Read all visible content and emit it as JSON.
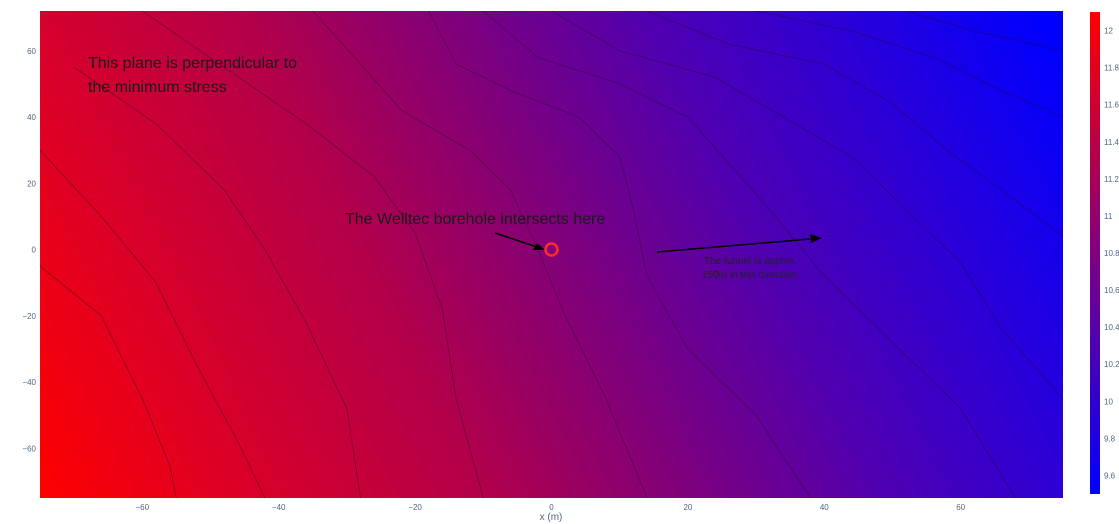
{
  "chart_data": {
    "type": "heatmap",
    "subtype": "filled-contour",
    "title": "",
    "xlabel": "x (m)",
    "ylabel": "",
    "xlim": [
      -75,
      75
    ],
    "ylim": [
      -75,
      72
    ],
    "x_ticks": [
      -60,
      -40,
      -20,
      0,
      20,
      40,
      60
    ],
    "y_ticks": [
      60,
      40,
      20,
      0,
      -20,
      -40,
      -60
    ],
    "x_tick_labels": [
      "−60",
      "−40",
      "−20",
      "0",
      "20",
      "40",
      "60"
    ],
    "y_tick_labels": [
      "60",
      "40",
      "20",
      "0",
      "−20",
      "−40",
      "−60"
    ],
    "colorscale": [
      "#ff0000",
      "#0000ff"
    ],
    "zlim": [
      9.5,
      12.1
    ],
    "colorbar_ticks": [
      12,
      11.8,
      11.6,
      11.4,
      11.2,
      11,
      10.8,
      10.6,
      10.4,
      10.2,
      10,
      9.8,
      9.6
    ],
    "colorbar_labels": [
      "12",
      "11.8",
      "11.6",
      "11.4",
      "11.2",
      "11",
      "10.8",
      "10.6",
      "10.4",
      "10.2",
      "10",
      "9.8",
      "9.6"
    ],
    "contour_levels": [
      9.7,
      9.9,
      10.1,
      10.3,
      10.5,
      10.7,
      10.9,
      11.1,
      11.3,
      11.5,
      11.7,
      11.9
    ],
    "contour_lines": [
      {
        "level": 11.7,
        "points": [
          [
            -75,
            -5
          ],
          [
            -66,
            -20
          ],
          [
            -60,
            -45
          ],
          [
            -56,
            -65
          ],
          [
            -55,
            -75
          ]
        ]
      },
      {
        "level": 11.5,
        "points": [
          [
            -75,
            30
          ],
          [
            -66,
            10
          ],
          [
            -58,
            -10
          ],
          [
            -52,
            -35
          ],
          [
            -46,
            -58
          ],
          [
            -42,
            -75
          ]
        ]
      },
      {
        "level": 11.3,
        "points": [
          [
            -70,
            55
          ],
          [
            -58,
            38
          ],
          [
            -48,
            18
          ],
          [
            -42,
            0
          ],
          [
            -36,
            -22
          ],
          [
            -30,
            -48
          ],
          [
            -28,
            -75
          ]
        ]
      },
      {
        "level": 11.1,
        "points": [
          [
            -60,
            72
          ],
          [
            -48,
            55
          ],
          [
            -36,
            38
          ],
          [
            -26,
            22
          ],
          [
            -20,
            5
          ],
          [
            -16,
            -18
          ],
          [
            -14,
            -45
          ],
          [
            -10,
            -75
          ]
        ]
      },
      {
        "level": 10.9,
        "points": [
          [
            -35,
            72
          ],
          [
            -28,
            56
          ],
          [
            -22,
            42
          ],
          [
            -12,
            30
          ],
          [
            -6,
            18
          ],
          [
            -2,
            0
          ],
          [
            2,
            -20
          ],
          [
            8,
            -45
          ],
          [
            14,
            -75
          ]
        ]
      },
      {
        "level": 10.7,
        "points": [
          [
            -18,
            72
          ],
          [
            -14,
            56
          ],
          [
            -6,
            48
          ],
          [
            4,
            40
          ],
          [
            10,
            28
          ],
          [
            12,
            12
          ],
          [
            14,
            -8
          ],
          [
            20,
            -30
          ],
          [
            30,
            -50
          ],
          [
            38,
            -75
          ]
        ]
      },
      {
        "level": 10.5,
        "points": [
          [
            -10,
            72
          ],
          [
            -2,
            58
          ],
          [
            10,
            50
          ],
          [
            20,
            40
          ],
          [
            26,
            26
          ],
          [
            32,
            12
          ],
          [
            40,
            -8
          ],
          [
            50,
            -28
          ],
          [
            60,
            -48
          ],
          [
            68,
            -75
          ]
        ]
      },
      {
        "level": 10.3,
        "points": [
          [
            0,
            72
          ],
          [
            10,
            60
          ],
          [
            24,
            52
          ],
          [
            34,
            40
          ],
          [
            44,
            28
          ],
          [
            52,
            12
          ],
          [
            60,
            -4
          ],
          [
            66,
            -24
          ],
          [
            75,
            -45
          ]
        ]
      },
      {
        "level": 10.1,
        "points": [
          [
            14,
            72
          ],
          [
            26,
            62
          ],
          [
            40,
            56
          ],
          [
            50,
            44
          ],
          [
            58,
            30
          ],
          [
            66,
            18
          ],
          [
            75,
            4
          ]
        ]
      },
      {
        "level": 9.9,
        "points": [
          [
            30,
            72
          ],
          [
            44,
            66
          ],
          [
            56,
            58
          ],
          [
            66,
            48
          ],
          [
            75,
            40
          ]
        ]
      },
      {
        "level": 9.7,
        "points": [
          [
            52,
            72
          ],
          [
            62,
            66
          ],
          [
            75,
            60
          ]
        ]
      }
    ]
  },
  "annotations": {
    "plane_note_line1": "This plane is perpendicular to",
    "plane_note_line2": "the minimum stress",
    "borehole_note": "The Welltec borehole  intersects here",
    "tunnel_note_line1": "The tunnel is approx.",
    "tunnel_note_line2": "150m in this direction"
  },
  "marker": {
    "x": 0,
    "y": 0,
    "color": "#ff2a2a"
  }
}
